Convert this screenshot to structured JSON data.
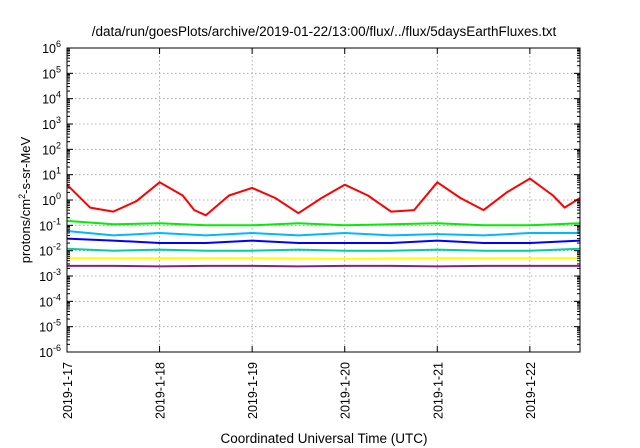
{
  "chart_data": {
    "type": "line",
    "title": "/data/run/goesPlots/archive/2019-01-22/13:00/flux/../flux/5daysEarthFluxes.txt",
    "xlabel": "Coordinated Universal Time (UTC)",
    "ylabel": "protons/cm2-s-sr-MeV",
    "ylabel_parts": {
      "base": "protons/cm",
      "sup": "2",
      "rest": "-s-sr-MeV"
    },
    "y_scale": "log",
    "ylim": [
      1e-06,
      1000000.0
    ],
    "y_ticks": [
      {
        "exp": "-6",
        "value": 1e-06
      },
      {
        "exp": "-5",
        "value": 1e-05
      },
      {
        "exp": "-4",
        "value": 0.0001
      },
      {
        "exp": "-3",
        "value": 0.001
      },
      {
        "exp": "-2",
        "value": 0.01
      },
      {
        "exp": "-1",
        "value": 0.1
      },
      {
        "exp": "0",
        "value": 1
      },
      {
        "exp": "1",
        "value": 10
      },
      {
        "exp": "2",
        "value": 100
      },
      {
        "exp": "3",
        "value": 1000
      },
      {
        "exp": "4",
        "value": 10000
      },
      {
        "exp": "5",
        "value": 100000
      },
      {
        "exp": "6",
        "value": 1000000
      }
    ],
    "y_tick_base": "10",
    "xlim": [
      "2019-01-17T00:00",
      "2019-01-22T13:00"
    ],
    "x_ticks": [
      "2019-1-17",
      "2019-1-18",
      "2019-1-19",
      "2019-1-20",
      "2019-1-21",
      "2019-1-22"
    ],
    "grid": true,
    "legend": "none",
    "series": [
      {
        "color": "#ff0000",
        "x": [
          "2019-01-17T00:00",
          "2019-01-17T06:00",
          "2019-01-17T12:00",
          "2019-01-17T18:00",
          "2019-01-18T00:00",
          "2019-01-18T06:00",
          "2019-01-18T09:00",
          "2019-01-18T12:00",
          "2019-01-18T18:00",
          "2019-01-19T00:00",
          "2019-01-19T06:00",
          "2019-01-19T12:00",
          "2019-01-19T18:00",
          "2019-01-20T00:00",
          "2019-01-20T06:00",
          "2019-01-20T12:00",
          "2019-01-20T18:00",
          "2019-01-21T00:00",
          "2019-01-21T06:00",
          "2019-01-21T12:00",
          "2019-01-21T18:00",
          "2019-01-22T00:00",
          "2019-01-22T06:00",
          "2019-01-22T09:00",
          "2019-01-22T13:00"
        ],
        "values": [
          4,
          0.5,
          0.35,
          0.9,
          5,
          1.5,
          0.4,
          0.25,
          1.5,
          3,
          1.2,
          0.3,
          1.2,
          4,
          1.5,
          0.35,
          0.4,
          5,
          1.2,
          0.4,
          2,
          7,
          1.5,
          0.5,
          1.2
        ]
      },
      {
        "color": "#00ee00",
        "x": [
          "2019-01-17T00:00",
          "2019-01-17T12:00",
          "2019-01-18T00:00",
          "2019-01-18T12:00",
          "2019-01-19T00:00",
          "2019-01-19T12:00",
          "2019-01-20T00:00",
          "2019-01-20T12:00",
          "2019-01-21T00:00",
          "2019-01-21T12:00",
          "2019-01-22T00:00",
          "2019-01-22T13:00"
        ],
        "values": [
          0.15,
          0.11,
          0.12,
          0.1,
          0.1,
          0.12,
          0.1,
          0.11,
          0.12,
          0.1,
          0.1,
          0.12
        ]
      },
      {
        "color": "#00b8ff",
        "x": [
          "2019-01-17T00:00",
          "2019-01-17T12:00",
          "2019-01-18T00:00",
          "2019-01-18T12:00",
          "2019-01-19T00:00",
          "2019-01-19T12:00",
          "2019-01-20T00:00",
          "2019-01-20T12:00",
          "2019-01-21T00:00",
          "2019-01-21T12:00",
          "2019-01-22T00:00",
          "2019-01-22T13:00"
        ],
        "values": [
          0.06,
          0.04,
          0.05,
          0.04,
          0.05,
          0.04,
          0.05,
          0.04,
          0.045,
          0.04,
          0.05,
          0.05
        ]
      },
      {
        "color": "#0000ff",
        "x": [
          "2019-01-17T00:00",
          "2019-01-17T12:00",
          "2019-01-18T00:00",
          "2019-01-18T12:00",
          "2019-01-19T00:00",
          "2019-01-19T12:00",
          "2019-01-20T00:00",
          "2019-01-20T12:00",
          "2019-01-21T00:00",
          "2019-01-21T12:00",
          "2019-01-22T00:00",
          "2019-01-22T13:00"
        ],
        "values": [
          0.03,
          0.025,
          0.02,
          0.02,
          0.025,
          0.02,
          0.02,
          0.02,
          0.025,
          0.02,
          0.02,
          0.025
        ]
      },
      {
        "color": "#00d0a0",
        "x": [
          "2019-01-17T00:00",
          "2019-01-17T12:00",
          "2019-01-18T00:00",
          "2019-01-18T12:00",
          "2019-01-19T00:00",
          "2019-01-19T12:00",
          "2019-01-20T00:00",
          "2019-01-20T12:00",
          "2019-01-21T00:00",
          "2019-01-21T12:00",
          "2019-01-22T00:00",
          "2019-01-22T13:00"
        ],
        "values": [
          0.012,
          0.01,
          0.011,
          0.01,
          0.01,
          0.011,
          0.01,
          0.01,
          0.011,
          0.01,
          0.01,
          0.012
        ]
      },
      {
        "color": "#ffff00",
        "x": [
          "2019-01-17T00:00",
          "2019-01-18T00:00",
          "2019-01-19T00:00",
          "2019-01-20T00:00",
          "2019-01-21T00:00",
          "2019-01-22T00:00",
          "2019-01-22T13:00"
        ],
        "values": [
          0.005,
          0.005,
          0.005,
          0.0048,
          0.005,
          0.005,
          0.005
        ]
      },
      {
        "color": "#8b2080",
        "x": [
          "2019-01-17T00:00",
          "2019-01-17T12:00",
          "2019-01-18T00:00",
          "2019-01-18T12:00",
          "2019-01-19T00:00",
          "2019-01-19T12:00",
          "2019-01-20T00:00",
          "2019-01-20T12:00",
          "2019-01-21T00:00",
          "2019-01-21T12:00",
          "2019-01-22T00:00",
          "2019-01-22T13:00"
        ],
        "values": [
          0.0025,
          0.0025,
          0.0024,
          0.0025,
          0.0025,
          0.0024,
          0.0025,
          0.0025,
          0.0024,
          0.0025,
          0.0025,
          0.0025
        ]
      }
    ]
  }
}
